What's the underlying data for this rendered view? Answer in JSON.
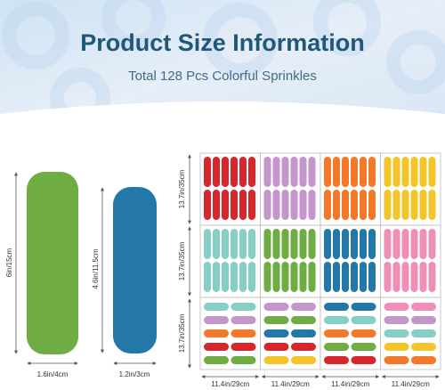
{
  "header": {
    "title": "Product Size Information",
    "subtitle": "Total 128 Pcs Colorful Sprinkles"
  },
  "pieces": [
    {
      "length": "6in/15cm",
      "width": "1.6in/4cm"
    },
    {
      "length": "4.6in/11.5cm",
      "width": "1.2in/3cm"
    }
  ],
  "sheet": {
    "row_heights": [
      "13.7in/35cm",
      "13.7in/35cm",
      "13.7in/35cm"
    ],
    "column_widths": [
      "11.4in/29cm",
      "11.4in/29cm",
      "11.4in/29cm",
      "11.4in/29cm"
    ]
  }
}
